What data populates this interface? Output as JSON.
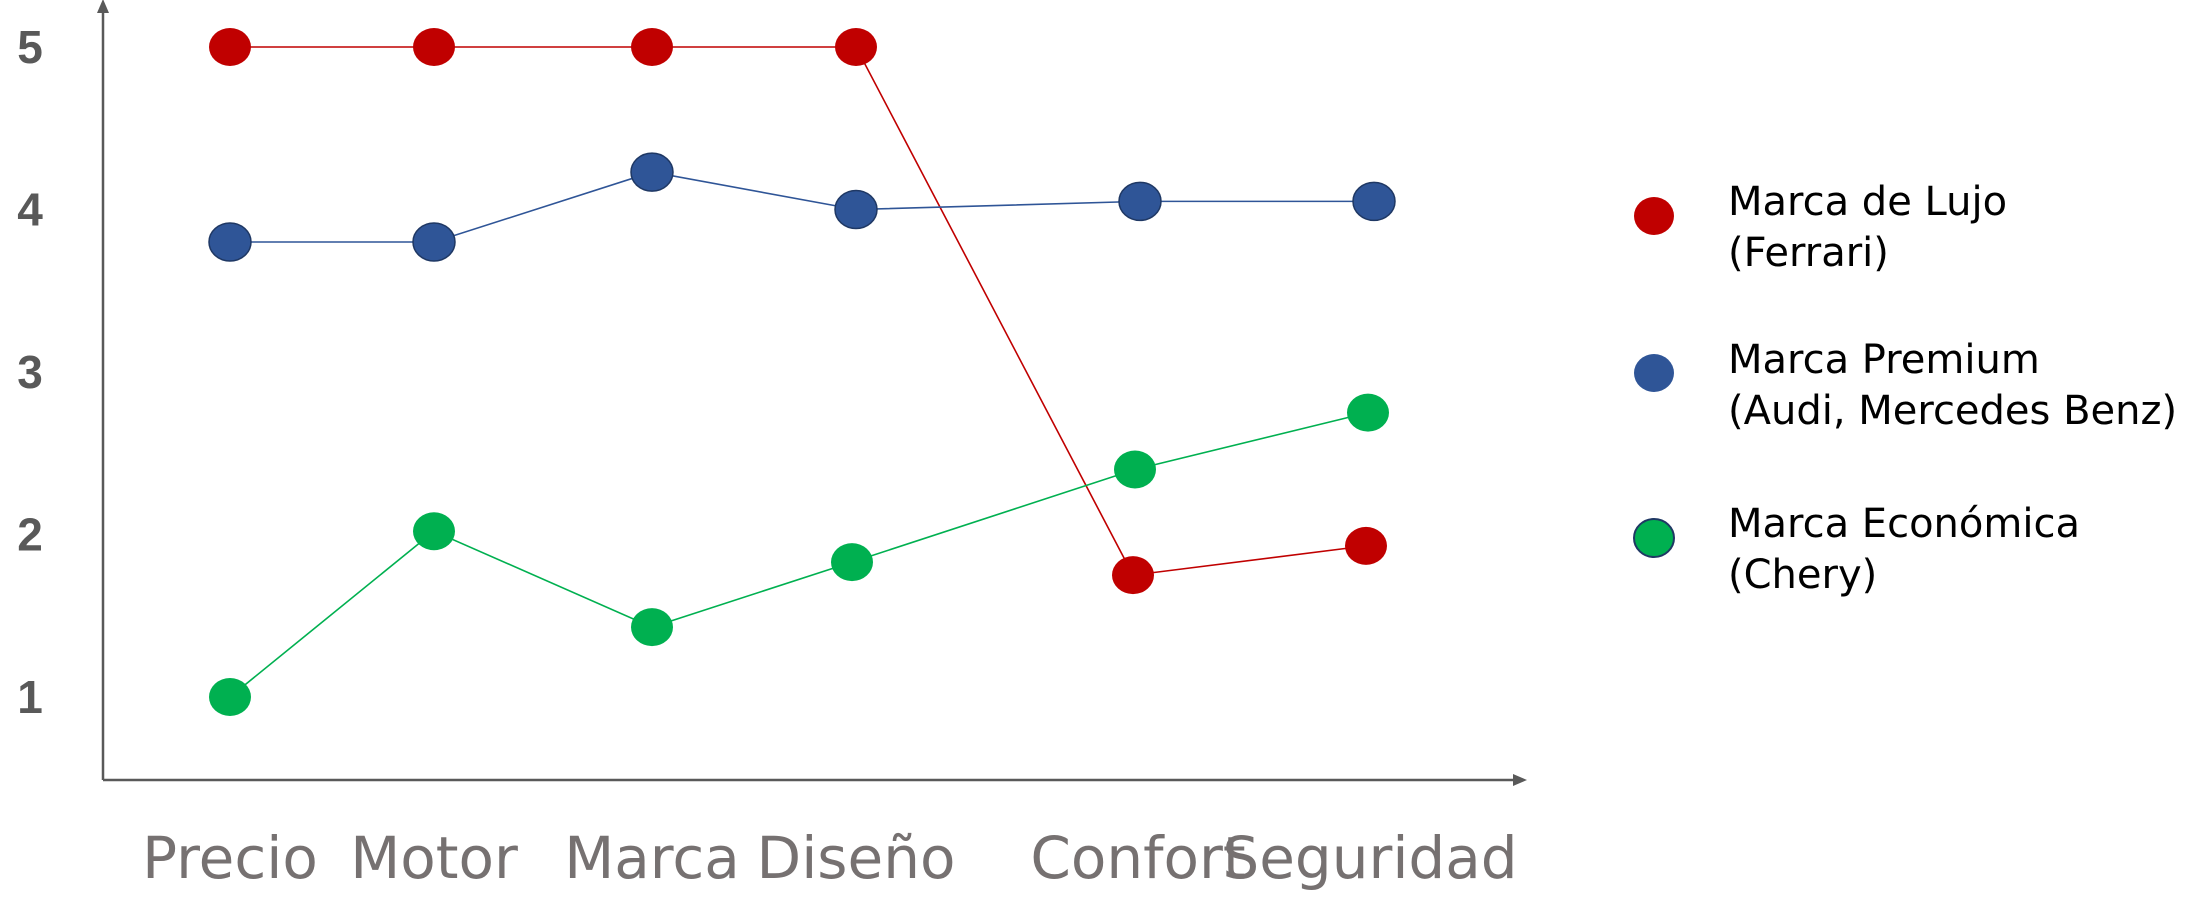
{
  "chart_data": {
    "type": "line",
    "categories": [
      "Precio",
      "Motor",
      "Marca",
      "Diseño",
      "Confort",
      "Seguridad"
    ],
    "y_ticks": [
      "1",
      "2",
      "3",
      "4",
      "5"
    ],
    "ylim": [
      1,
      5
    ],
    "grid": false,
    "legend_position": "right",
    "series": [
      {
        "name": "Marca de Lujo",
        "name_line2": "(Ferrari)",
        "color": "#C00000",
        "values": [
          5,
          5,
          5,
          5,
          1.75,
          1.93
        ]
      },
      {
        "name": "Marca Premium",
        "name_line2": "(Audi, Mercedes Benz)",
        "color": "#2F5597",
        "values": [
          3.8,
          3.8,
          4.23,
          4.0,
          4.05,
          4.05
        ]
      },
      {
        "name": "Marca Económica",
        "name_line2": "(Chery)",
        "color": "#00B050",
        "values": [
          1.0,
          2.02,
          1.43,
          1.83,
          2.4,
          2.75
        ]
      }
    ]
  }
}
